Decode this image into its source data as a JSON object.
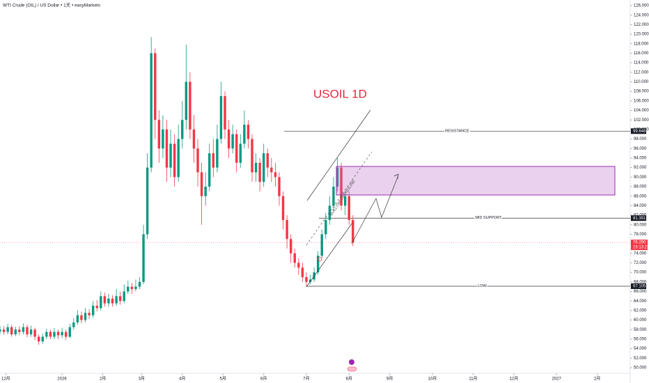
{
  "chart_data": {
    "type": "candlestick",
    "title": "WTI Crude (OIL) / US Dollar • 1天 • easyMarkets",
    "annotation": "USOIL 1D",
    "trendline_label": "BULLISH TRENDLINE",
    "up_color": "#089981",
    "down_color": "#f23645",
    "x": [
      0,
      2,
      4,
      6,
      8,
      10,
      12,
      14,
      16,
      18,
      20,
      22,
      24,
      26,
      28,
      30,
      32,
      34,
      36,
      38,
      40,
      42,
      44,
      46,
      48,
      50,
      52,
      54,
      56,
      58,
      60,
      62,
      64,
      66,
      68,
      70,
      72,
      74,
      76,
      78,
      80,
      82,
      84,
      86,
      88,
      90,
      92,
      94,
      96,
      98,
      100,
      102,
      104,
      106,
      108,
      110,
      112,
      114,
      116,
      118,
      120,
      122,
      124,
      126,
      128,
      130,
      132,
      134,
      136,
      138,
      140,
      142,
      144,
      146,
      148,
      150,
      152,
      154,
      156,
      158,
      160,
      162,
      164,
      166,
      168,
      170,
      172,
      174,
      176,
      178,
      180,
      182
    ],
    "open": [
      57.6,
      58,
      57.5,
      58.5,
      57,
      58,
      57.5,
      58.5,
      57,
      58,
      56.5,
      55.5,
      56.5,
      57.5,
      56.5,
      57.5,
      56.8,
      57.5,
      56.5,
      58.5,
      59.5,
      61,
      60,
      61.5,
      61,
      63,
      62.5,
      65,
      63.5,
      64.5,
      63.5,
      65,
      64,
      66,
      67,
      66.5,
      67,
      68,
      78,
      92,
      116,
      102,
      96,
      100,
      92,
      97,
      90,
      98,
      102,
      110,
      100,
      96,
      91,
      86,
      88,
      95,
      92,
      98,
      107,
      100,
      96,
      99,
      93,
      97,
      101,
      98,
      91,
      93,
      89,
      95,
      92,
      91,
      90,
      86,
      81,
      77,
      74,
      72,
      71,
      69,
      68,
      68.5,
      70,
      73.5,
      78,
      81,
      84,
      88,
      92,
      84,
      86,
      81
    ],
    "high": [
      58.8,
      58.7,
      59.2,
      59,
      58.6,
      58.7,
      59.3,
      59,
      58.8,
      58.4,
      57,
      57.2,
      58.2,
      58,
      58.3,
      58,
      58.4,
      58,
      59.2,
      60.4,
      62,
      61.8,
      62.5,
      62.3,
      64,
      64.2,
      66,
      65.8,
      65.5,
      65.2,
      66.5,
      66,
      67.5,
      68.3,
      67.8,
      68.5,
      69,
      80,
      95,
      119.4,
      117,
      104,
      103,
      102,
      100,
      99,
      101,
      106,
      117.8,
      112,
      103,
      98,
      93,
      91,
      97,
      98,
      101,
      110,
      108,
      102,
      101,
      100,
      99,
      104,
      102,
      99,
      95,
      94,
      97,
      96,
      94,
      93,
      91,
      87,
      82,
      78,
      75,
      73,
      72,
      70,
      69.5,
      71,
      74.5,
      79,
      82.5,
      86,
      90,
      94,
      93,
      87,
      87,
      82
    ],
    "low": [
      57,
      56.9,
      57,
      56.5,
      56.6,
      56.8,
      57,
      56.4,
      56.5,
      55.8,
      54.8,
      55,
      56,
      56,
      56,
      56,
      56.2,
      55.8,
      56.2,
      58,
      59,
      59.3,
      59.5,
      60.2,
      60.5,
      61.8,
      62,
      62.8,
      62.8,
      62.8,
      63,
      63.2,
      63.5,
      65.5,
      65.5,
      66,
      66.5,
      67.5,
      77,
      91,
      98,
      93,
      94,
      89,
      90,
      88,
      89,
      96,
      100,
      98,
      93,
      88,
      80,
      84,
      87,
      90,
      91,
      97,
      98,
      94,
      95,
      91,
      92,
      96,
      96,
      89,
      89,
      87,
      88,
      90,
      89,
      88,
      84,
      79,
      75,
      72,
      71,
      69.5,
      68,
      67,
      67.5,
      68,
      69.5,
      73,
      77,
      80,
      83,
      87,
      83,
      82,
      80,
      75.5
    ],
    "close": [
      58,
      57.5,
      58.5,
      57,
      58,
      57.5,
      58.5,
      57,
      58,
      56.5,
      55.5,
      56.5,
      57.5,
      56.5,
      57.5,
      56.8,
      57.5,
      56.5,
      58.5,
      59.5,
      61,
      60,
      61.5,
      61,
      63,
      62.5,
      65,
      63.5,
      64.5,
      63.5,
      65,
      64,
      66,
      67,
      66.5,
      67,
      68,
      78,
      92,
      116,
      102,
      96,
      100,
      92,
      97,
      90,
      98,
      102,
      110,
      100,
      96,
      91,
      86,
      88,
      95,
      92,
      98,
      107,
      100,
      96,
      99,
      93,
      97,
      101,
      98,
      91,
      93,
      89,
      95,
      92,
      91,
      90,
      86,
      81,
      77,
      74,
      72,
      71,
      69,
      68,
      68.5,
      70,
      73.5,
      78,
      81,
      84,
      88,
      92,
      84,
      86,
      81,
      76.29
    ],
    "xlim": [
      0,
      325
    ],
    "ylim": [
      50,
      126
    ],
    "xticks": [
      {
        "value": 3,
        "label": "12月"
      },
      {
        "value": 32,
        "label": "2026"
      },
      {
        "value": 53,
        "label": "2月"
      },
      {
        "value": 73,
        "label": "3月"
      },
      {
        "value": 94,
        "label": "4月"
      },
      {
        "value": 115,
        "label": "5月"
      },
      {
        "value": 136,
        "label": "6月"
      },
      {
        "value": 158,
        "label": "7月"
      },
      {
        "value": 180,
        "label": "8月"
      },
      {
        "value": 201,
        "label": "9月"
      },
      {
        "value": 223,
        "label": "10月"
      },
      {
        "value": 244,
        "label": "11月"
      },
      {
        "value": 265,
        "label": "12月"
      },
      {
        "value": 287,
        "label": "2027"
      },
      {
        "value": 308,
        "label": "2月"
      }
    ],
    "yticks": [
      {
        "value": 126,
        "label": "126.000"
      },
      {
        "value": 124,
        "label": "124.000"
      },
      {
        "value": 122,
        "label": "122.000"
      },
      {
        "value": 120,
        "label": "120.000"
      },
      {
        "value": 118,
        "label": "118.000"
      },
      {
        "value": 116,
        "label": "116.000"
      },
      {
        "value": 114,
        "label": "114.000"
      },
      {
        "value": 112,
        "label": "112.000"
      },
      {
        "value": 110,
        "label": "110.000"
      },
      {
        "value": 108,
        "label": "108.000"
      },
      {
        "value": 106,
        "label": "106.000"
      },
      {
        "value": 104,
        "label": "104.000"
      },
      {
        "value": 102,
        "label": "102.000"
      },
      {
        "value": 100,
        "label": "100.000"
      },
      {
        "value": 98,
        "label": "98.000"
      },
      {
        "value": 96,
        "label": "96.000"
      },
      {
        "value": 94,
        "label": "94.000"
      },
      {
        "value": 92,
        "label": "92.000"
      },
      {
        "value": 90,
        "label": "90.000"
      },
      {
        "value": 88,
        "label": "88.000"
      },
      {
        "value": 86,
        "label": "86.000"
      },
      {
        "value": 84,
        "label": "84.000"
      },
      {
        "value": 82,
        "label": "82.000"
      },
      {
        "value": 80,
        "label": "80.000"
      },
      {
        "value": 78,
        "label": "78.000"
      },
      {
        "value": 76,
        "label": "76.000"
      },
      {
        "value": 74,
        "label": "74.000"
      },
      {
        "value": 72,
        "label": "72.000"
      },
      {
        "value": 70,
        "label": "70.000"
      },
      {
        "value": 68,
        "label": "68.000"
      },
      {
        "value": 66,
        "label": "66.000"
      },
      {
        "value": 64,
        "label": "64.000"
      },
      {
        "value": 62,
        "label": "62.000"
      },
      {
        "value": 60,
        "label": "60.000"
      },
      {
        "value": 58,
        "label": "58.000"
      },
      {
        "value": 56,
        "label": "56.000"
      },
      {
        "value": 54,
        "label": "54.000"
      },
      {
        "value": 52,
        "label": "52.000"
      },
      {
        "value": 50,
        "label": "50.000"
      }
    ],
    "levels": [
      {
        "text": "RESISTANCE",
        "value": 99.648,
        "label": "99.648"
      },
      {
        "text": "MID SUPPORT",
        "value": 81.391,
        "label": "81.391"
      },
      {
        "text": "LOW",
        "value": 67.105,
        "label": "67.105"
      }
    ],
    "last_price": {
      "value": 76.29,
      "label": "76.290",
      "countdown": "15:13:22"
    }
  }
}
